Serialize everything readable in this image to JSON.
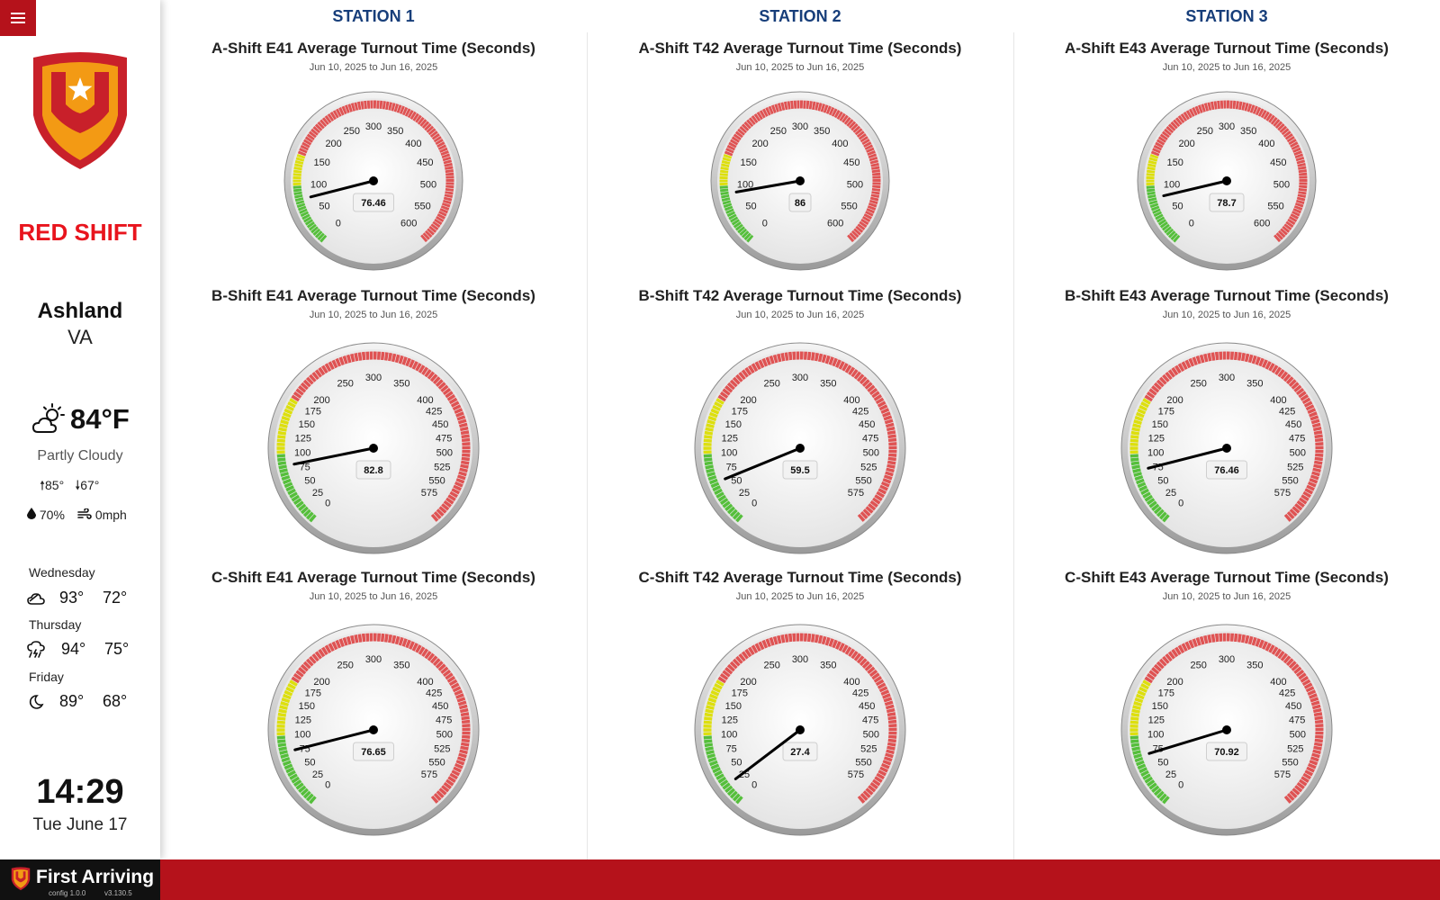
{
  "app": {
    "shift": "RED SHIFT",
    "footer_brand": "First Arriving",
    "config_version": "config 1.0.0",
    "app_version": "v3.130.5",
    "accent_color": "#b5121b"
  },
  "location": {
    "city": "Ashland",
    "state": "VA"
  },
  "weather": {
    "icon": "partly-cloudy-sun-icon",
    "temp": "84°F",
    "condition": "Partly Cloudy",
    "high": "85°",
    "low": "67°",
    "humidity": "70%",
    "wind": "0mph",
    "forecast": [
      {
        "day": "Wednesday",
        "icon": "cloud-icon",
        "hi": "93°",
        "lo": "72°"
      },
      {
        "day": "Thursday",
        "icon": "thunderstorm-icon",
        "hi": "94°",
        "lo": "75°"
      },
      {
        "day": "Friday",
        "icon": "moon-icon",
        "hi": "89°",
        "lo": "68°"
      }
    ]
  },
  "clock": {
    "time": "14:29",
    "date": "Tue June 17"
  },
  "stations": [
    {
      "title": "STATION 1"
    },
    {
      "title": "STATION 2"
    },
    {
      "title": "STATION 3"
    }
  ],
  "chart_data": [
    {
      "type": "gauge",
      "title": "A-Shift E41 Average Turnout Time (Seconds)",
      "subtitle": "Jun 10, 2025 to Jun 16, 2025",
      "value": 76.46,
      "value_label": "76.46",
      "range": [
        0,
        600
      ],
      "ticks": [
        0,
        50,
        100,
        150,
        200,
        250,
        300,
        350,
        400,
        450,
        500,
        550,
        600
      ],
      "bands": [
        {
          "from": 0,
          "to": 100,
          "color": "#55bf3b"
        },
        {
          "from": 100,
          "to": 150,
          "color": "#dddf0d"
        },
        {
          "from": 150,
          "to": 600,
          "color": "#df5353"
        }
      ]
    },
    {
      "type": "gauge",
      "title": "A-Shift T42 Average Turnout Time (Seconds)",
      "subtitle": "Jun 10, 2025 to Jun 16, 2025",
      "value": 86,
      "value_label": "86",
      "range": [
        0,
        600
      ],
      "ticks": [
        0,
        50,
        100,
        150,
        200,
        250,
        300,
        350,
        400,
        450,
        500,
        550,
        600
      ],
      "bands": [
        {
          "from": 0,
          "to": 100,
          "color": "#55bf3b"
        },
        {
          "from": 100,
          "to": 150,
          "color": "#dddf0d"
        },
        {
          "from": 150,
          "to": 600,
          "color": "#df5353"
        }
      ]
    },
    {
      "type": "gauge",
      "title": "A-Shift E43 Average Turnout Time (Seconds)",
      "subtitle": "Jun 10, 2025 to Jun 16, 2025",
      "value": 78.7,
      "value_label": "78.7",
      "range": [
        0,
        600
      ],
      "ticks": [
        0,
        50,
        100,
        150,
        200,
        250,
        300,
        350,
        400,
        450,
        500,
        550,
        600
      ],
      "bands": [
        {
          "from": 0,
          "to": 100,
          "color": "#55bf3b"
        },
        {
          "from": 100,
          "to": 150,
          "color": "#dddf0d"
        },
        {
          "from": 150,
          "to": 600,
          "color": "#df5353"
        }
      ]
    },
    {
      "type": "gauge",
      "title": "B-Shift E41 Average Turnout Time (Seconds)",
      "subtitle": "Jun 10, 2025 to Jun 16, 2025",
      "value": 82.8,
      "value_label": "82.8",
      "range": [
        0,
        600
      ],
      "ticks": [
        0,
        25,
        50,
        75,
        100,
        125,
        150,
        175,
        200,
        250,
        300,
        350,
        400,
        425,
        450,
        475,
        500,
        525,
        550,
        575
      ],
      "bands": [
        {
          "from": 0,
          "to": 100,
          "color": "#55bf3b"
        },
        {
          "from": 100,
          "to": 175,
          "color": "#dddf0d"
        },
        {
          "from": 175,
          "to": 600,
          "color": "#df5353"
        }
      ]
    },
    {
      "type": "gauge",
      "title": "B-Shift T42 Average Turnout Time (Seconds)",
      "subtitle": "Jun 10, 2025 to Jun 16, 2025",
      "value": 59.5,
      "value_label": "59.5",
      "range": [
        0,
        600
      ],
      "ticks": [
        0,
        25,
        50,
        75,
        100,
        125,
        150,
        175,
        200,
        250,
        300,
        350,
        400,
        425,
        450,
        475,
        500,
        525,
        550,
        575
      ],
      "bands": [
        {
          "from": 0,
          "to": 100,
          "color": "#55bf3b"
        },
        {
          "from": 100,
          "to": 175,
          "color": "#dddf0d"
        },
        {
          "from": 175,
          "to": 600,
          "color": "#df5353"
        }
      ]
    },
    {
      "type": "gauge",
      "title": "B-Shift E43 Average Turnout Time (Seconds)",
      "subtitle": "Jun 10, 2025 to Jun 16, 2025",
      "value": 76.46,
      "value_label": "76.46",
      "range": [
        0,
        600
      ],
      "ticks": [
        0,
        25,
        50,
        75,
        100,
        125,
        150,
        175,
        200,
        250,
        300,
        350,
        400,
        425,
        450,
        475,
        500,
        525,
        550,
        575
      ],
      "bands": [
        {
          "from": 0,
          "to": 100,
          "color": "#55bf3b"
        },
        {
          "from": 100,
          "to": 175,
          "color": "#dddf0d"
        },
        {
          "from": 175,
          "to": 600,
          "color": "#df5353"
        }
      ]
    },
    {
      "type": "gauge",
      "title": "C-Shift E41 Average Turnout Time (Seconds)",
      "subtitle": "Jun 10, 2025 to Jun 16, 2025",
      "value": 76.65,
      "value_label": "76.65",
      "range": [
        0,
        600
      ],
      "ticks": [
        0,
        25,
        50,
        75,
        100,
        125,
        150,
        175,
        200,
        250,
        300,
        350,
        400,
        425,
        450,
        475,
        500,
        525,
        550,
        575
      ],
      "bands": [
        {
          "from": 0,
          "to": 100,
          "color": "#55bf3b"
        },
        {
          "from": 100,
          "to": 175,
          "color": "#dddf0d"
        },
        {
          "from": 175,
          "to": 600,
          "color": "#df5353"
        }
      ]
    },
    {
      "type": "gauge",
      "title": "C-Shift T42 Average Turnout Time (Seconds)",
      "subtitle": "Jun 10, 2025 to Jun 16, 2025",
      "value": 27.4,
      "value_label": "27.4",
      "range": [
        0,
        600
      ],
      "ticks": [
        0,
        25,
        50,
        75,
        100,
        125,
        150,
        175,
        200,
        250,
        300,
        350,
        400,
        425,
        450,
        475,
        500,
        525,
        550,
        575
      ],
      "bands": [
        {
          "from": 0,
          "to": 100,
          "color": "#55bf3b"
        },
        {
          "from": 100,
          "to": 175,
          "color": "#dddf0d"
        },
        {
          "from": 175,
          "to": 600,
          "color": "#df5353"
        }
      ]
    },
    {
      "type": "gauge",
      "title": "C-Shift E43 Average Turnout Time (Seconds)",
      "subtitle": "Jun 10, 2025 to Jun 16, 2025",
      "value": 70.92,
      "value_label": "70.92",
      "range": [
        0,
        600
      ],
      "ticks": [
        0,
        25,
        50,
        75,
        100,
        125,
        150,
        175,
        200,
        250,
        300,
        350,
        400,
        425,
        450,
        475,
        500,
        525,
        550,
        575
      ],
      "bands": [
        {
          "from": 0,
          "to": 100,
          "color": "#55bf3b"
        },
        {
          "from": 100,
          "to": 175,
          "color": "#dddf0d"
        },
        {
          "from": 175,
          "to": 600,
          "color": "#df5353"
        }
      ]
    }
  ]
}
